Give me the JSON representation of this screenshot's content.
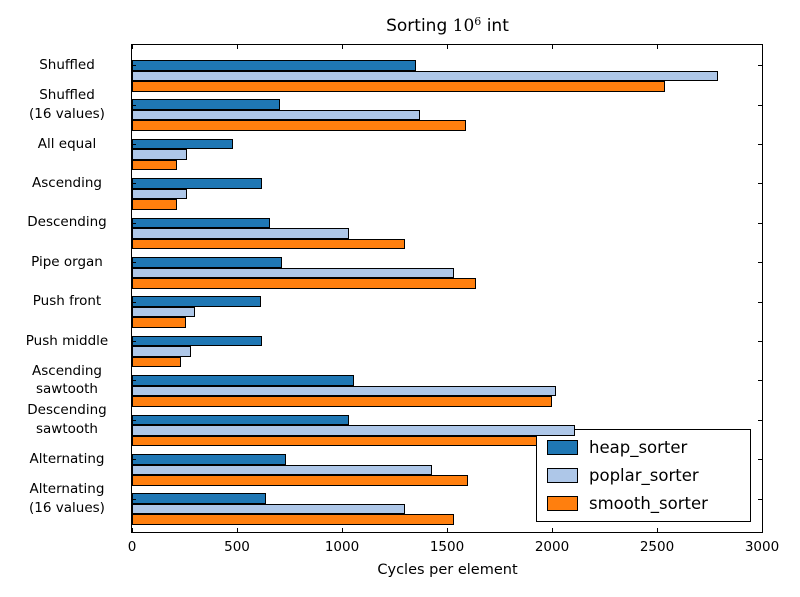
{
  "title": {
    "prefix": "Sorting ",
    "base": "10",
    "superscript": "6",
    "suffix": " int"
  },
  "chart_data": {
    "type": "bar",
    "orientation": "horizontal",
    "title": "Sorting 10^6 int",
    "xlabel": "Cycles per element",
    "xlim": [
      0,
      3000
    ],
    "xticks": [
      0,
      500,
      1000,
      1500,
      2000,
      2500,
      3000
    ],
    "grid": false,
    "legend_position": "lower right",
    "categories": [
      "Shuffled",
      "Shuffled\n(16 values)",
      "All equal",
      "Ascending",
      "Descending",
      "Pipe organ",
      "Push front",
      "Push middle",
      "Ascending\nsawtooth",
      "Descending\nsawtooth",
      "Alternating",
      "Alternating\n(16 values)"
    ],
    "series": [
      {
        "name": "heap_sorter",
        "color": "#1f77b4",
        "values": [
          1350,
          705,
          480,
          620,
          655,
          715,
          615,
          620,
          1055,
          1035,
          735,
          640
        ]
      },
      {
        "name": "poplar_sorter",
        "color": "#aec7e8",
        "values": [
          2790,
          1370,
          260,
          260,
          1035,
          1535,
          300,
          280,
          2020,
          2110,
          1430,
          1300
        ]
      },
      {
        "name": "smooth_sorter",
        "color": "#ff7f0e",
        "values": [
          2540,
          1590,
          215,
          215,
          1300,
          1640,
          255,
          235,
          2000,
          2050,
          1600,
          1535
        ]
      }
    ],
    "edge_color": "#000000"
  }
}
